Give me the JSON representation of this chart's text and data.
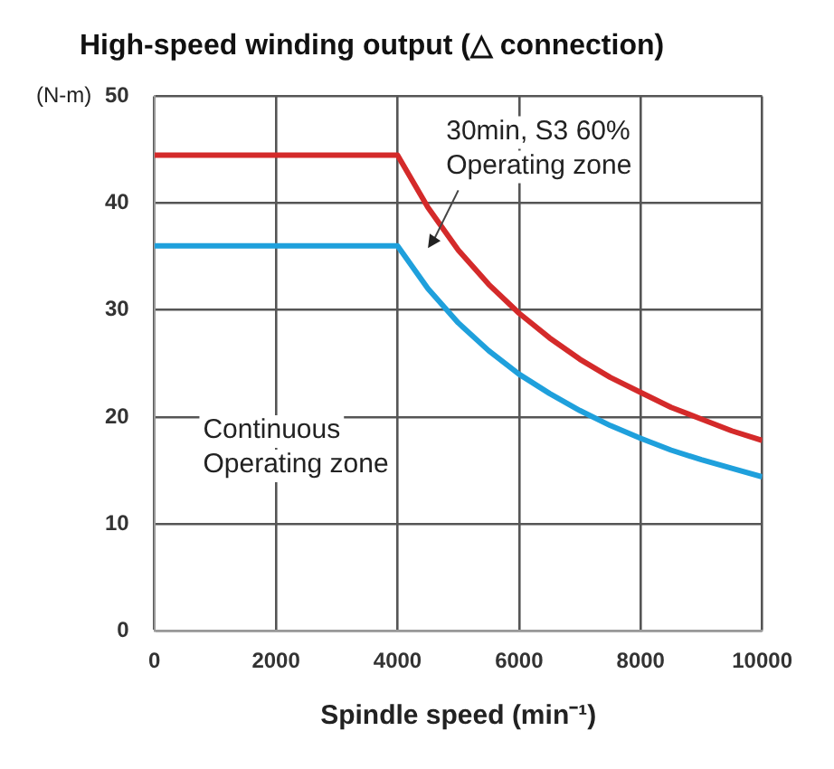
{
  "chart_data": {
    "type": "line",
    "title": "High-speed winding output (△ connection)",
    "xlabel": "Spindle speed (min⁻¹)",
    "ylabel": "(N-m)",
    "xlim": [
      0,
      10000
    ],
    "xticks": [
      0,
      2000,
      4000,
      6000,
      8000,
      10000
    ],
    "ylim": [
      0,
      50
    ],
    "yticks": [
      0,
      10,
      20,
      30,
      40,
      50
    ],
    "grid": true,
    "marker": "none",
    "line_style": "solid",
    "annotations": [
      "30min, S3 60%\nOperating zone",
      "Continuous\nOperating zone"
    ],
    "series": [
      {
        "color": "#d42a2a",
        "x": [
          0,
          4000,
          4500,
          5000,
          5500,
          6000,
          6500,
          7000,
          7500,
          8000,
          8500,
          9000,
          9500,
          10000
        ],
        "values": [
          44.5,
          44.5,
          39.6,
          35.6,
          32.4,
          29.7,
          27.4,
          25.4,
          23.7,
          22.3,
          20.9,
          19.8,
          18.7,
          17.8
        ]
      },
      {
        "color": "#1fa0dc",
        "x": [
          0,
          4000,
          4500,
          5000,
          5500,
          6000,
          6500,
          7000,
          7500,
          8000,
          8500,
          9000,
          9500,
          10000
        ],
        "values": [
          36,
          36,
          32,
          28.8,
          26.2,
          24,
          22.2,
          20.6,
          19.2,
          18,
          16.9,
          16,
          15.2,
          14.4
        ]
      }
    ]
  }
}
